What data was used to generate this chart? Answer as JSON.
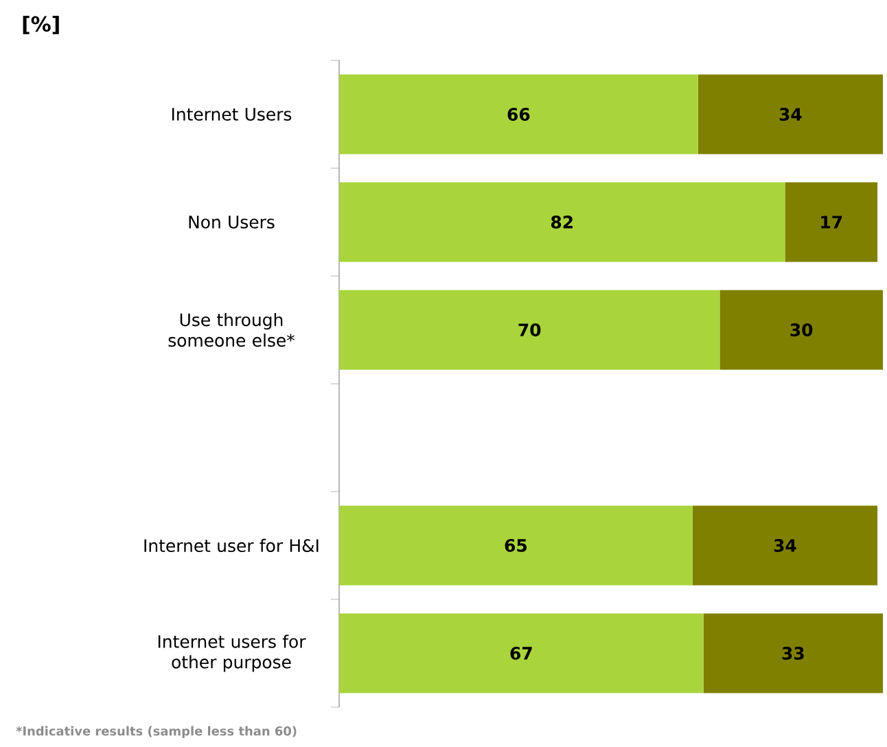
{
  "chart_data": {
    "type": "bar",
    "orientation": "horizontal",
    "stacked": true,
    "title": "[%]",
    "categories": [
      "Internet Users",
      "Non Users",
      "Use through someone else*",
      null,
      "Internet user for H&I",
      "Internet users for other purpose"
    ],
    "series": [
      {
        "color": "#a9d43c",
        "values": [
          66,
          82,
          70,
          null,
          65,
          67
        ]
      },
      {
        "color": "#808000",
        "values": [
          34,
          17,
          30,
          null,
          34,
          33
        ]
      }
    ],
    "tick_labels": "y",
    "data_labels": true,
    "annotations": [
      "*Indicative results (sample less than 60)"
    ]
  }
}
